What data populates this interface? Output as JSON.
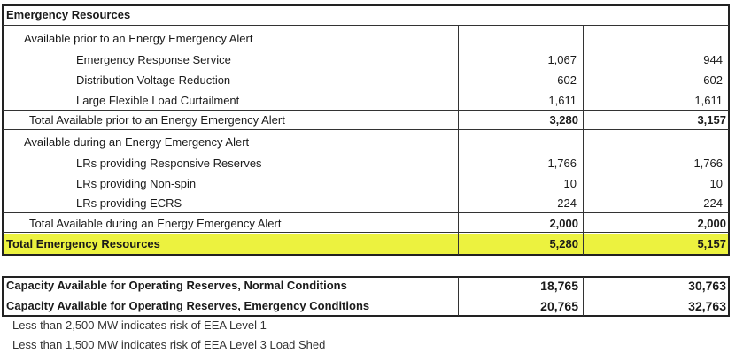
{
  "title": "Emergency Resources",
  "prior": {
    "heading": "Available prior to an Energy Emergency Alert",
    "items": [
      {
        "label": "Emergency Response Service",
        "v1": "1,067",
        "v2": "944"
      },
      {
        "label": "Distribution Voltage Reduction",
        "v1": "602",
        "v2": "602"
      },
      {
        "label": "Large Flexible Load Curtailment",
        "v1": "1,611",
        "v2": "1,611"
      }
    ],
    "total_label": "Total Available prior to an Energy Emergency Alert",
    "total_v1": "3,280",
    "total_v2": "3,157"
  },
  "during": {
    "heading": "Available during an Energy Emergency Alert",
    "items": [
      {
        "label": "LRs providing Responsive Reserves",
        "v1": "1,766",
        "v2": "1,766"
      },
      {
        "label": "LRs providing Non-spin",
        "v1": "10",
        "v2": "10"
      },
      {
        "label": "LRs providing ECRS",
        "v1": "224",
        "v2": "224"
      }
    ],
    "total_label": "Total Available during an Energy Emergency Alert",
    "total_v1": "2,000",
    "total_v2": "2,000"
  },
  "grand_total": {
    "label": "Total Emergency Resources",
    "v1": "5,280",
    "v2": "5,157"
  },
  "capacity": [
    {
      "label": "Capacity Available for Operating Reserves, Normal Conditions",
      "v1": "18,765",
      "v2": "30,763"
    },
    {
      "label": "Capacity Available for Operating Reserves, Emergency Conditions",
      "v1": "20,765",
      "v2": "32,763"
    }
  ],
  "notes": [
    "Less than 2,500 MW indicates risk of EEA Level 1",
    "Less than 1,500 MW indicates risk of EEA Level 3 Load Shed"
  ],
  "colors": {
    "highlight": "#ecf23f"
  }
}
